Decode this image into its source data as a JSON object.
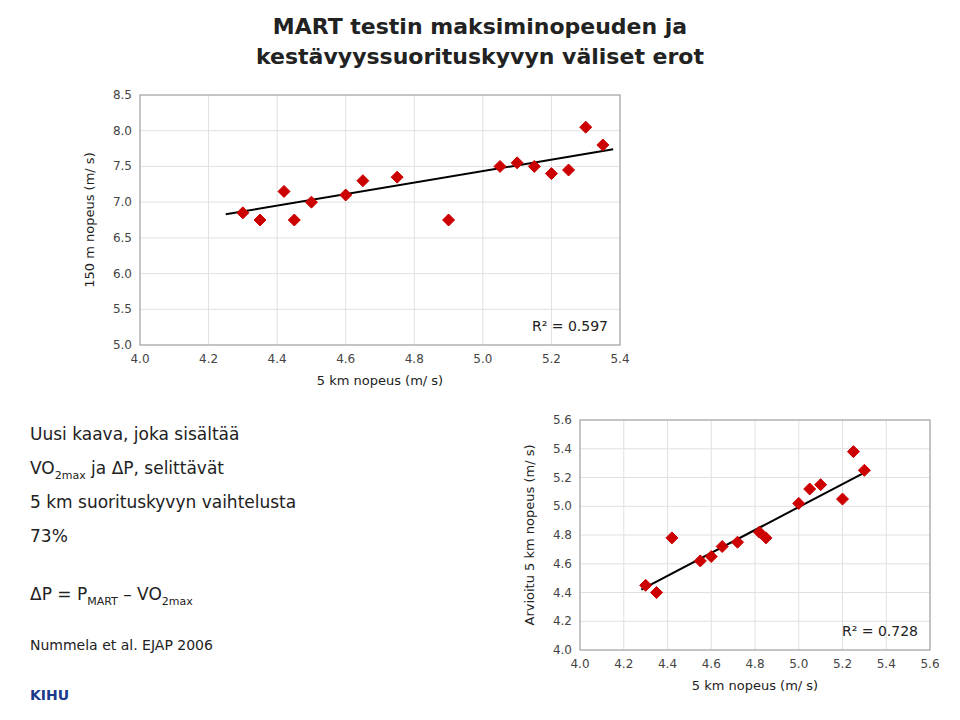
{
  "title": [
    "MART testin maksiminopeuden ja",
    "kestävyyssuorituskyvyn väliset erot"
  ],
  "annotations": [
    "Uusi kaava, joka sisältää",
    [
      "VO",
      "2max",
      " ja ΔP, selittävät"
    ],
    "5 km suorituskyvyn vaihtelusta",
    "73%",
    [
      "ΔP = P",
      "MART",
      " – VO",
      "2max"
    ],
    "Nummela et al. EJAP 2006",
    "KIHU"
  ],
  "chart_data": [
    {
      "type": "scatter",
      "xlabel": "5 km nopeus (m/ s)",
      "ylabel": "150 m nopeus (m/ s)",
      "xlim": [
        4.0,
        5.4
      ],
      "ylim": [
        5.0,
        8.5
      ],
      "xticks": [
        {
          "value": 4.0,
          "label": "4.0"
        },
        4.2,
        4.4,
        4.6,
        4.8,
        {
          "value": 5.0,
          "label": "5.0"
        },
        5.2,
        5.4
      ],
      "yticks": [
        {
          "value": 5.0,
          "label": "5.0"
        },
        5.5,
        {
          "value": 6.0,
          "label": "6.0"
        },
        6.5,
        {
          "value": 7.0,
          "label": "7.0"
        },
        7.5,
        {
          "value": 8.0,
          "label": "8.0"
        },
        8.5
      ],
      "grid": true,
      "annotations": [
        "R² = 0.597"
      ],
      "series": [
        {
          "type": "scatter",
          "color": "#CC0000",
          "marker": "diamond",
          "x": [
            4.3,
            4.35,
            4.42,
            4.45,
            4.5,
            4.6,
            4.65,
            4.75,
            4.9,
            5.05,
            5.1,
            5.15,
            5.2,
            5.25,
            5.3,
            5.35
          ],
          "values": [
            6.85,
            6.75,
            7.15,
            6.75,
            7.0,
            7.1,
            7.3,
            7.35,
            6.75,
            7.5,
            7.55,
            7.5,
            7.4,
            7.45,
            8.05,
            7.8
          ]
        },
        {
          "type": "line",
          "color": "#000000",
          "line_style": "solid",
          "x": [
            4.25,
            5.38
          ],
          "values": [
            6.83,
            7.74
          ]
        }
      ]
    },
    {
      "type": "scatter",
      "xlabel": "5 km nopeus (m/ s)",
      "ylabel": "Arvioitu 5 km nopeus (m/ s)",
      "xlim": [
        4.0,
        5.6
      ],
      "ylim": [
        4.0,
        5.6
      ],
      "xticks": [
        {
          "value": 4.0,
          "label": "4.0"
        },
        4.2,
        4.4,
        4.6,
        4.8,
        {
          "value": 5.0,
          "label": "5.0"
        },
        5.2,
        5.4,
        5.6
      ],
      "yticks": [
        {
          "value": 4.0,
          "label": "4.0"
        },
        4.2,
        4.4,
        4.6,
        4.8,
        {
          "value": 5.0,
          "label": "5.0"
        },
        5.2,
        5.4,
        5.6
      ],
      "grid": true,
      "annotations": [
        "R² = 0.728"
      ],
      "series": [
        {
          "type": "scatter",
          "color": "#CC0000",
          "marker": "diamond",
          "x": [
            4.3,
            4.35,
            4.42,
            4.55,
            4.6,
            4.65,
            4.72,
            4.82,
            4.85,
            5.0,
            5.05,
            5.1,
            5.2,
            5.25,
            5.3
          ],
          "values": [
            4.45,
            4.4,
            4.78,
            4.62,
            4.65,
            4.72,
            4.75,
            4.82,
            4.78,
            5.02,
            5.12,
            5.15,
            5.05,
            5.38,
            5.25
          ]
        },
        {
          "type": "line",
          "color": "#000000",
          "line_style": "solid",
          "x": [
            4.28,
            5.32
          ],
          "values": [
            4.42,
            5.25
          ]
        }
      ]
    }
  ]
}
